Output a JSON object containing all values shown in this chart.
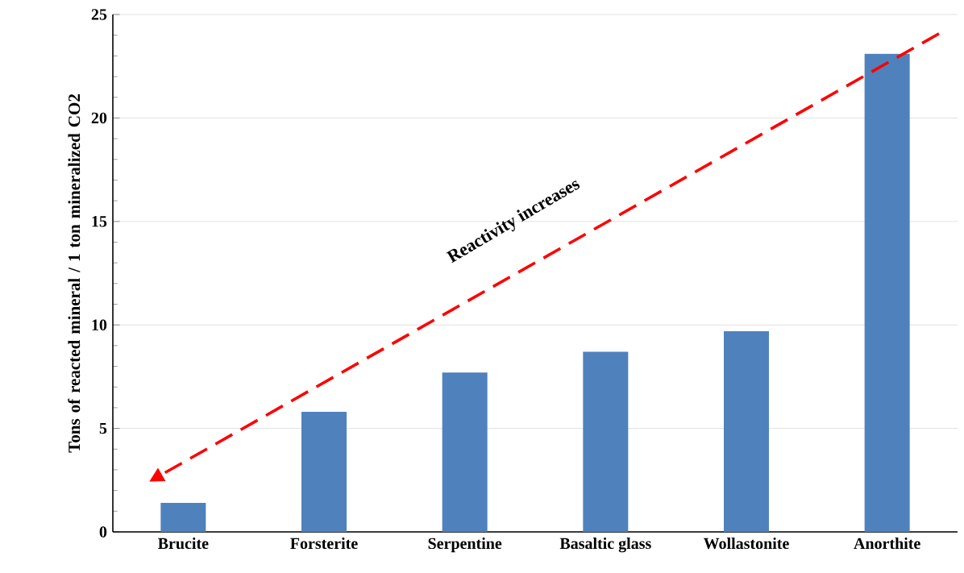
{
  "chart_data": {
    "type": "bar",
    "ylabel": "Tons of reacted mineral / 1 ton mineralized CO2",
    "categories": [
      "Brucite",
      "Forsterite",
      "Serpentine",
      "Basaltic glass",
      "Wollastonite",
      "Anorthite"
    ],
    "values": [
      1.4,
      5.8,
      7.7,
      8.7,
      9.7,
      23.1
    ],
    "color": "#4f81bd",
    "ylim": [
      0,
      25
    ],
    "yticks": [
      0,
      5,
      10,
      15,
      20,
      25
    ],
    "grid": "y",
    "annotations": [
      "Reactivity increases"
    ]
  }
}
